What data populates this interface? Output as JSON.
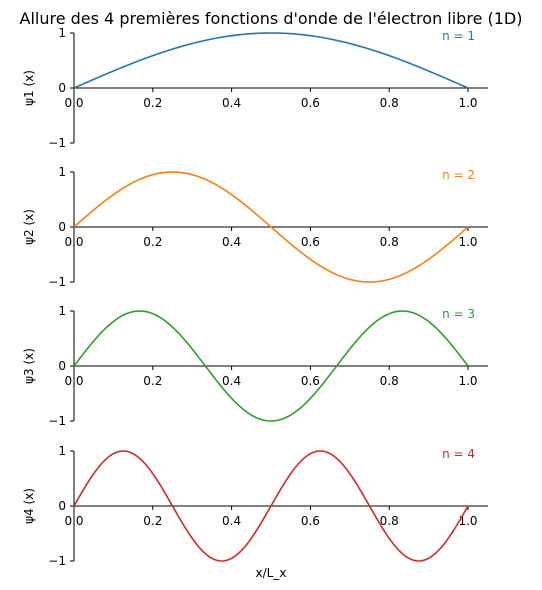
{
  "title": "Allure des 4 premières fonctions d'onde de l'électron libre (1D)",
  "chart_data": [
    {
      "type": "line",
      "n": 1,
      "label": "n = 1",
      "ylabel": "ψ1 (x)",
      "color": "#1f77b4",
      "xlim": [
        0,
        1
      ],
      "ylim": [
        -1,
        1
      ],
      "xticks": [
        "0.0",
        "0.2",
        "0.4",
        "0.6",
        "0.8",
        "1.0"
      ],
      "yticks": [
        "−1",
        "0",
        "1"
      ],
      "x": [
        0,
        0.05,
        0.1,
        0.15,
        0.2,
        0.25,
        0.3,
        0.35,
        0.4,
        0.45,
        0.5,
        0.55,
        0.6,
        0.65,
        0.7,
        0.75,
        0.8,
        0.85,
        0.9,
        0.95,
        1.0
      ],
      "y": [
        0.0,
        0.156,
        0.309,
        0.454,
        0.588,
        0.707,
        0.809,
        0.891,
        0.951,
        0.988,
        1.0,
        0.988,
        0.951,
        0.891,
        0.809,
        0.707,
        0.588,
        0.454,
        0.309,
        0.156,
        0.0
      ]
    },
    {
      "type": "line",
      "n": 2,
      "label": "n = 2",
      "ylabel": "ψ2 (x)",
      "color": "#ff7f0e",
      "xlim": [
        0,
        1
      ],
      "ylim": [
        -1,
        1
      ],
      "xticks": [
        "0.0",
        "0.2",
        "0.4",
        "0.6",
        "0.8",
        "1.0"
      ],
      "yticks": [
        "−1",
        "0",
        "1"
      ],
      "x": [
        0,
        0.05,
        0.1,
        0.15,
        0.2,
        0.25,
        0.3,
        0.35,
        0.4,
        0.45,
        0.5,
        0.55,
        0.6,
        0.65,
        0.7,
        0.75,
        0.8,
        0.85,
        0.9,
        0.95,
        1.0
      ],
      "y": [
        0.0,
        0.309,
        0.588,
        0.809,
        0.951,
        1.0,
        0.951,
        0.809,
        0.588,
        0.309,
        0.0,
        -0.309,
        -0.588,
        -0.809,
        -0.951,
        -1.0,
        -0.951,
        -0.809,
        -0.588,
        -0.309,
        0.0
      ]
    },
    {
      "type": "line",
      "n": 3,
      "label": "n = 3",
      "ylabel": "ψ3 (x)",
      "color": "#2ca02c",
      "xlim": [
        0,
        1
      ],
      "ylim": [
        -1,
        1
      ],
      "xticks": [
        "0.0",
        "0.2",
        "0.4",
        "0.6",
        "0.8",
        "1.0"
      ],
      "yticks": [
        "−1",
        "0",
        "1"
      ],
      "x": [
        0,
        0.05,
        0.1,
        0.15,
        0.2,
        0.25,
        0.3,
        0.35,
        0.4,
        0.45,
        0.5,
        0.55,
        0.6,
        0.65,
        0.7,
        0.75,
        0.8,
        0.85,
        0.9,
        0.95,
        1.0
      ],
      "y": [
        0.0,
        0.454,
        0.809,
        0.988,
        0.951,
        0.707,
        0.309,
        -0.156,
        -0.588,
        -0.891,
        -1.0,
        -0.891,
        -0.588,
        -0.156,
        0.309,
        0.707,
        0.951,
        0.988,
        0.809,
        0.454,
        0.0
      ]
    },
    {
      "type": "line",
      "n": 4,
      "label": "n = 4",
      "ylabel": "ψ4 (x)",
      "xlabel": "x/L_x",
      "color": "#d62728",
      "xlim": [
        0,
        1
      ],
      "ylim": [
        -1,
        1
      ],
      "xticks": [
        "0.0",
        "0.2",
        "0.4",
        "0.6",
        "0.8",
        "1.0"
      ],
      "yticks": [
        "−1",
        "0",
        "1"
      ],
      "x": [
        0,
        0.05,
        0.1,
        0.15,
        0.2,
        0.25,
        0.3,
        0.35,
        0.4,
        0.45,
        0.5,
        0.55,
        0.6,
        0.65,
        0.7,
        0.75,
        0.8,
        0.85,
        0.9,
        0.95,
        1.0
      ],
      "y": [
        0.0,
        0.588,
        0.951,
        0.951,
        0.588,
        0.0,
        -0.588,
        -0.951,
        -0.951,
        -0.588,
        0.0,
        0.588,
        0.951,
        0.951,
        0.588,
        0.0,
        -0.588,
        -0.951,
        -0.951,
        -0.588,
        0.0
      ]
    }
  ]
}
